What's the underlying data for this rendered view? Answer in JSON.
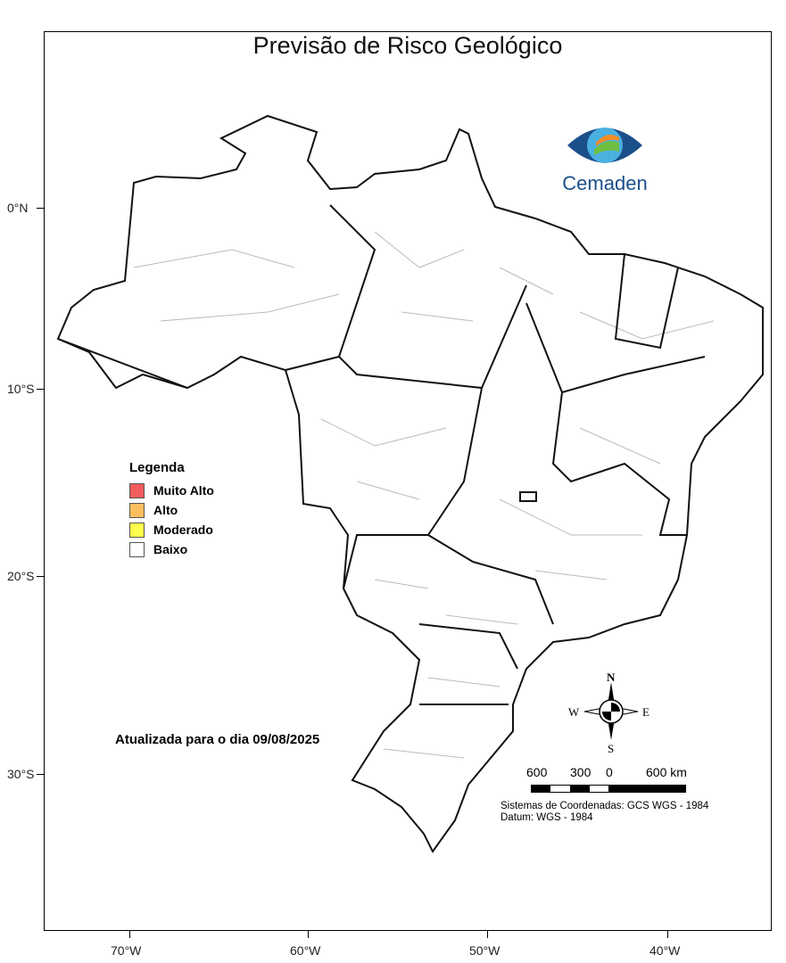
{
  "title": "Previsão de Risco Geológico",
  "logo": {
    "text": "Cemaden"
  },
  "axes": {
    "lat_ticks": [
      "0°N",
      "10°S",
      "20°S",
      "30°S"
    ],
    "lon_ticks": [
      "70°W",
      "60°W",
      "50°W",
      "40°W"
    ]
  },
  "legend": {
    "title": "Legenda",
    "items": [
      {
        "label": "Muito Alto",
        "color": "#f25c5c"
      },
      {
        "label": "Alto",
        "color": "#fbbf5f"
      },
      {
        "label": "Moderado",
        "color": "#ffff4d"
      },
      {
        "label": "Baixo",
        "color": "#ffffff"
      }
    ]
  },
  "updated": "Atualizada para o dia 09/08/2025",
  "compass": {
    "n": "N",
    "s": "S",
    "e": "E",
    "w": "W"
  },
  "scale": {
    "labels": [
      "600",
      "300",
      "0",
      "600 km"
    ]
  },
  "coordinate_system": "Sistemas de Coordenadas: GCS WGS - 1984",
  "datum": "Datum: WGS - 1984"
}
